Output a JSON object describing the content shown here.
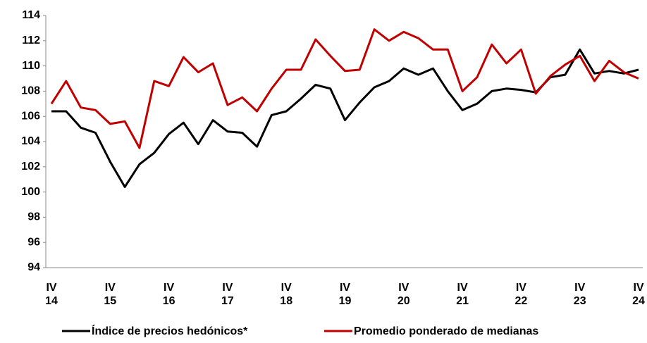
{
  "chart_data": {
    "type": "line",
    "categories": [
      "IV 14",
      null,
      null,
      null,
      "IV 15",
      null,
      null,
      null,
      "IV 16",
      null,
      null,
      null,
      "IV 17",
      null,
      null,
      null,
      "IV 18",
      null,
      null,
      null,
      "IV 19",
      null,
      null,
      null,
      "IV 20",
      null,
      null,
      null,
      "IV 21",
      null,
      null,
      null,
      "IV 22",
      null,
      null,
      null,
      "IV 23",
      null,
      null,
      null,
      "IV 24"
    ],
    "series": [
      {
        "name": "Índice de precios hedónicos*",
        "color": "#000000",
        "values": [
          106.4,
          106.4,
          105.1,
          104.7,
          102.4,
          100.4,
          102.2,
          103.1,
          104.6,
          105.5,
          103.8,
          105.7,
          104.8,
          104.7,
          103.6,
          106.1,
          106.4,
          107.4,
          108.5,
          108.2,
          105.7,
          107.1,
          108.3,
          108.8,
          109.8,
          109.3,
          109.8,
          108.0,
          106.5,
          107.0,
          108.0,
          108.2,
          108.1,
          107.9,
          109.1,
          109.3,
          111.3,
          109.4,
          109.6,
          109.4,
          109.7
        ]
      },
      {
        "name": "Promedio ponderado de medianas",
        "color": "#c00000",
        "values": [
          107.0,
          108.8,
          106.7,
          106.5,
          105.4,
          105.6,
          103.5,
          108.8,
          108.4,
          110.7,
          109.5,
          110.2,
          106.9,
          107.5,
          106.4,
          108.2,
          109.7,
          109.7,
          112.1,
          110.8,
          109.6,
          109.7,
          112.9,
          112.0,
          112.7,
          112.2,
          111.3,
          111.3,
          108.0,
          109.1,
          111.7,
          110.2,
          111.3,
          107.8,
          109.2,
          110.1,
          110.8,
          108.8,
          110.4,
          109.5,
          109.0
        ]
      }
    ],
    "ylim": [
      94,
      114
    ],
    "yticks": [
      94,
      96,
      98,
      100,
      102,
      104,
      106,
      108,
      110,
      112,
      114
    ],
    "grid": false,
    "legend": "bottom"
  }
}
